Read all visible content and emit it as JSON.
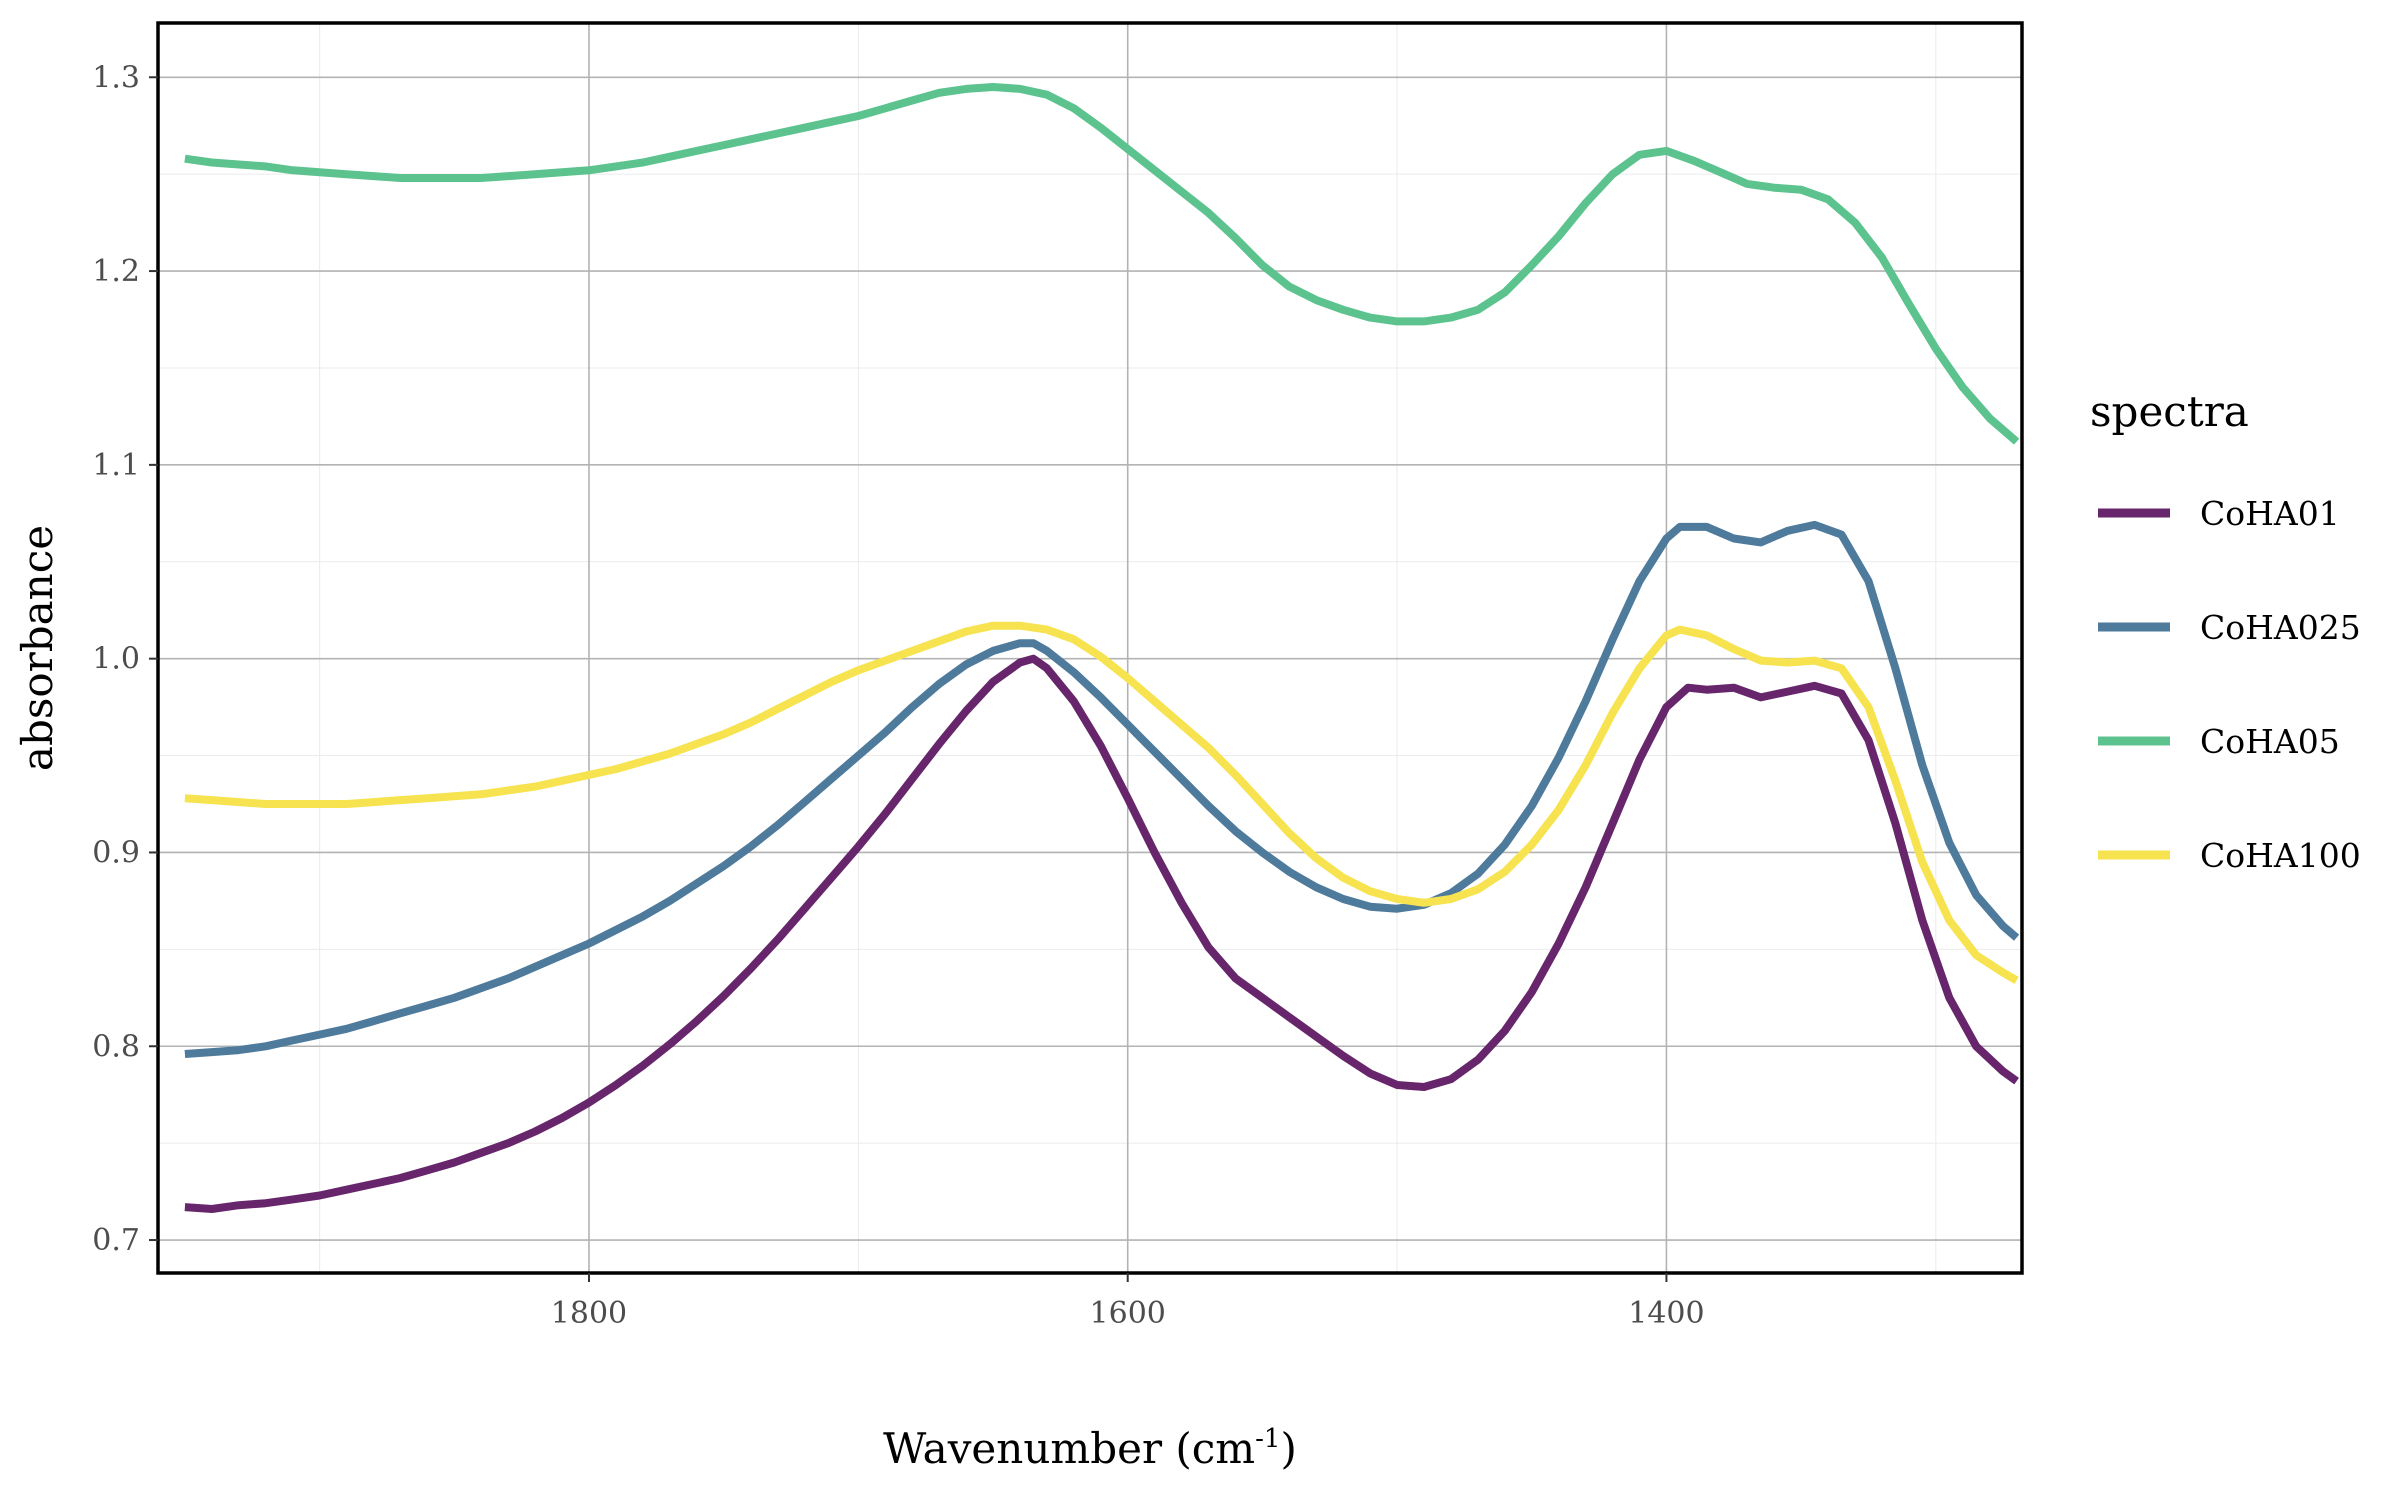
{
  "chart_data": {
    "type": "line",
    "xlabel": "Wavenumber (cm",
    "xlabel_sup": "-1",
    "xlabel_suffix": ")",
    "ylabel": "absorbance",
    "x_reversed": true,
    "xlim": [
      1960,
      1268
    ],
    "ylim": [
      0.683,
      1.328
    ],
    "xticks": [
      1800,
      1600,
      1400
    ],
    "xtick_labels": [
      "1800",
      "1600",
      "1400"
    ],
    "yticks": [
      0.7,
      0.8,
      0.9,
      1.0,
      1.1,
      1.2,
      1.3
    ],
    "ytick_labels": [
      "0.7",
      "0.8",
      "0.9",
      "1.0",
      "1.1",
      "1.2",
      "1.3"
    ],
    "grid": true,
    "legend": {
      "title": "spectra",
      "placement": "right"
    },
    "series": [
      {
        "name": "CoHA01",
        "color": "#67266b",
        "points": [
          [
            1950,
            0.717
          ],
          [
            1940,
            0.716
          ],
          [
            1930,
            0.718
          ],
          [
            1920,
            0.719
          ],
          [
            1910,
            0.721
          ],
          [
            1900,
            0.723
          ],
          [
            1890,
            0.726
          ],
          [
            1880,
            0.729
          ],
          [
            1870,
            0.732
          ],
          [
            1860,
            0.736
          ],
          [
            1850,
            0.74
          ],
          [
            1840,
            0.745
          ],
          [
            1830,
            0.75
          ],
          [
            1820,
            0.756
          ],
          [
            1810,
            0.763
          ],
          [
            1800,
            0.771
          ],
          [
            1790,
            0.78
          ],
          [
            1780,
            0.79
          ],
          [
            1770,
            0.801
          ],
          [
            1760,
            0.813
          ],
          [
            1750,
            0.826
          ],
          [
            1740,
            0.84
          ],
          [
            1730,
            0.855
          ],
          [
            1720,
            0.871
          ],
          [
            1710,
            0.887
          ],
          [
            1700,
            0.903
          ],
          [
            1690,
            0.92
          ],
          [
            1680,
            0.938
          ],
          [
            1670,
            0.956
          ],
          [
            1660,
            0.973
          ],
          [
            1650,
            0.988
          ],
          [
            1640,
            0.998
          ],
          [
            1635,
            1.0
          ],
          [
            1630,
            0.995
          ],
          [
            1620,
            0.978
          ],
          [
            1610,
            0.955
          ],
          [
            1600,
            0.928
          ],
          [
            1590,
            0.9
          ],
          [
            1580,
            0.874
          ],
          [
            1570,
            0.851
          ],
          [
            1560,
            0.835
          ],
          [
            1550,
            0.825
          ],
          [
            1540,
            0.815
          ],
          [
            1530,
            0.805
          ],
          [
            1520,
            0.795
          ],
          [
            1510,
            0.786
          ],
          [
            1500,
            0.78
          ],
          [
            1490,
            0.779
          ],
          [
            1480,
            0.783
          ],
          [
            1470,
            0.793
          ],
          [
            1460,
            0.808
          ],
          [
            1450,
            0.828
          ],
          [
            1440,
            0.853
          ],
          [
            1430,
            0.882
          ],
          [
            1420,
            0.915
          ],
          [
            1410,
            0.948
          ],
          [
            1400,
            0.975
          ],
          [
            1392,
            0.985
          ],
          [
            1385,
            0.984
          ],
          [
            1375,
            0.985
          ],
          [
            1365,
            0.98
          ],
          [
            1355,
            0.983
          ],
          [
            1345,
            0.986
          ],
          [
            1335,
            0.982
          ],
          [
            1325,
            0.958
          ],
          [
            1315,
            0.915
          ],
          [
            1305,
            0.865
          ],
          [
            1295,
            0.825
          ],
          [
            1285,
            0.8
          ],
          [
            1275,
            0.787
          ],
          [
            1270,
            0.782
          ]
        ]
      },
      {
        "name": "CoHA025",
        "color": "#4e7a9c",
        "points": [
          [
            1950,
            0.796
          ],
          [
            1940,
            0.797
          ],
          [
            1930,
            0.798
          ],
          [
            1920,
            0.8
          ],
          [
            1910,
            0.803
          ],
          [
            1900,
            0.806
          ],
          [
            1890,
            0.809
          ],
          [
            1880,
            0.813
          ],
          [
            1870,
            0.817
          ],
          [
            1860,
            0.821
          ],
          [
            1850,
            0.825
          ],
          [
            1840,
            0.83
          ],
          [
            1830,
            0.835
          ],
          [
            1820,
            0.841
          ],
          [
            1810,
            0.847
          ],
          [
            1800,
            0.853
          ],
          [
            1790,
            0.86
          ],
          [
            1780,
            0.867
          ],
          [
            1770,
            0.875
          ],
          [
            1760,
            0.884
          ],
          [
            1750,
            0.893
          ],
          [
            1740,
            0.903
          ],
          [
            1730,
            0.914
          ],
          [
            1720,
            0.926
          ],
          [
            1710,
            0.938
          ],
          [
            1700,
            0.95
          ],
          [
            1690,
            0.962
          ],
          [
            1680,
            0.975
          ],
          [
            1670,
            0.987
          ],
          [
            1660,
            0.997
          ],
          [
            1650,
            1.004
          ],
          [
            1640,
            1.008
          ],
          [
            1635,
            1.008
          ],
          [
            1630,
            1.004
          ],
          [
            1620,
            0.993
          ],
          [
            1610,
            0.98
          ],
          [
            1600,
            0.966
          ],
          [
            1590,
            0.952
          ],
          [
            1580,
            0.938
          ],
          [
            1570,
            0.924
          ],
          [
            1560,
            0.911
          ],
          [
            1550,
            0.9
          ],
          [
            1540,
            0.89
          ],
          [
            1530,
            0.882
          ],
          [
            1520,
            0.876
          ],
          [
            1510,
            0.872
          ],
          [
            1500,
            0.871
          ],
          [
            1490,
            0.873
          ],
          [
            1480,
            0.879
          ],
          [
            1470,
            0.889
          ],
          [
            1460,
            0.904
          ],
          [
            1450,
            0.924
          ],
          [
            1440,
            0.949
          ],
          [
            1430,
            0.978
          ],
          [
            1420,
            1.01
          ],
          [
            1410,
            1.04
          ],
          [
            1400,
            1.062
          ],
          [
            1395,
            1.068
          ],
          [
            1385,
            1.068
          ],
          [
            1375,
            1.062
          ],
          [
            1365,
            1.06
          ],
          [
            1355,
            1.066
          ],
          [
            1345,
            1.069
          ],
          [
            1335,
            1.064
          ],
          [
            1325,
            1.04
          ],
          [
            1315,
            0.995
          ],
          [
            1305,
            0.945
          ],
          [
            1295,
            0.905
          ],
          [
            1285,
            0.878
          ],
          [
            1275,
            0.862
          ],
          [
            1270,
            0.856
          ]
        ]
      },
      {
        "name": "CoHA05",
        "color": "#5cc38f",
        "points": [
          [
            1950,
            1.258
          ],
          [
            1940,
            1.256
          ],
          [
            1930,
            1.255
          ],
          [
            1920,
            1.254
          ],
          [
            1910,
            1.252
          ],
          [
            1900,
            1.251
          ],
          [
            1890,
            1.25
          ],
          [
            1880,
            1.249
          ],
          [
            1870,
            1.248
          ],
          [
            1860,
            1.248
          ],
          [
            1850,
            1.248
          ],
          [
            1840,
            1.248
          ],
          [
            1830,
            1.249
          ],
          [
            1820,
            1.25
          ],
          [
            1810,
            1.251
          ],
          [
            1800,
            1.252
          ],
          [
            1790,
            1.254
          ],
          [
            1780,
            1.256
          ],
          [
            1770,
            1.259
          ],
          [
            1760,
            1.262
          ],
          [
            1750,
            1.265
          ],
          [
            1740,
            1.268
          ],
          [
            1730,
            1.271
          ],
          [
            1720,
            1.274
          ],
          [
            1710,
            1.277
          ],
          [
            1700,
            1.28
          ],
          [
            1690,
            1.284
          ],
          [
            1680,
            1.288
          ],
          [
            1670,
            1.292
          ],
          [
            1660,
            1.294
          ],
          [
            1650,
            1.295
          ],
          [
            1640,
            1.294
          ],
          [
            1630,
            1.291
          ],
          [
            1620,
            1.284
          ],
          [
            1610,
            1.274
          ],
          [
            1600,
            1.263
          ],
          [
            1590,
            1.252
          ],
          [
            1580,
            1.241
          ],
          [
            1570,
            1.23
          ],
          [
            1560,
            1.217
          ],
          [
            1550,
            1.203
          ],
          [
            1540,
            1.192
          ],
          [
            1530,
            1.185
          ],
          [
            1520,
            1.18
          ],
          [
            1510,
            1.176
          ],
          [
            1500,
            1.174
          ],
          [
            1490,
            1.174
          ],
          [
            1480,
            1.176
          ],
          [
            1470,
            1.18
          ],
          [
            1460,
            1.189
          ],
          [
            1450,
            1.203
          ],
          [
            1440,
            1.218
          ],
          [
            1430,
            1.235
          ],
          [
            1420,
            1.25
          ],
          [
            1410,
            1.26
          ],
          [
            1400,
            1.262
          ],
          [
            1390,
            1.257
          ],
          [
            1380,
            1.251
          ],
          [
            1370,
            1.245
          ],
          [
            1360,
            1.243
          ],
          [
            1350,
            1.242
          ],
          [
            1340,
            1.237
          ],
          [
            1330,
            1.225
          ],
          [
            1320,
            1.207
          ],
          [
            1310,
            1.183
          ],
          [
            1300,
            1.16
          ],
          [
            1290,
            1.14
          ],
          [
            1280,
            1.124
          ],
          [
            1270,
            1.112
          ]
        ]
      },
      {
        "name": "CoHA100",
        "color": "#f6e34f",
        "points": [
          [
            1950,
            0.928
          ],
          [
            1940,
            0.927
          ],
          [
            1930,
            0.926
          ],
          [
            1920,
            0.925
          ],
          [
            1910,
            0.925
          ],
          [
            1900,
            0.925
          ],
          [
            1890,
            0.925
          ],
          [
            1880,
            0.926
          ],
          [
            1870,
            0.927
          ],
          [
            1860,
            0.928
          ],
          [
            1850,
            0.929
          ],
          [
            1840,
            0.93
          ],
          [
            1830,
            0.932
          ],
          [
            1820,
            0.934
          ],
          [
            1810,
            0.937
          ],
          [
            1800,
            0.94
          ],
          [
            1790,
            0.943
          ],
          [
            1780,
            0.947
          ],
          [
            1770,
            0.951
          ],
          [
            1760,
            0.956
          ],
          [
            1750,
            0.961
          ],
          [
            1740,
            0.967
          ],
          [
            1730,
            0.974
          ],
          [
            1720,
            0.981
          ],
          [
            1710,
            0.988
          ],
          [
            1700,
            0.994
          ],
          [
            1690,
            0.999
          ],
          [
            1680,
            1.004
          ],
          [
            1670,
            1.009
          ],
          [
            1660,
            1.014
          ],
          [
            1650,
            1.017
          ],
          [
            1640,
            1.017
          ],
          [
            1630,
            1.015
          ],
          [
            1620,
            1.01
          ],
          [
            1610,
            1.001
          ],
          [
            1600,
            0.99
          ],
          [
            1590,
            0.978
          ],
          [
            1580,
            0.966
          ],
          [
            1570,
            0.954
          ],
          [
            1560,
            0.94
          ],
          [
            1550,
            0.925
          ],
          [
            1540,
            0.91
          ],
          [
            1530,
            0.897
          ],
          [
            1520,
            0.887
          ],
          [
            1510,
            0.88
          ],
          [
            1500,
            0.876
          ],
          [
            1490,
            0.874
          ],
          [
            1480,
            0.876
          ],
          [
            1470,
            0.881
          ],
          [
            1460,
            0.89
          ],
          [
            1450,
            0.904
          ],
          [
            1440,
            0.922
          ],
          [
            1430,
            0.945
          ],
          [
            1420,
            0.972
          ],
          [
            1410,
            0.995
          ],
          [
            1400,
            1.012
          ],
          [
            1395,
            1.015
          ],
          [
            1385,
            1.012
          ],
          [
            1375,
            1.005
          ],
          [
            1365,
            0.999
          ],
          [
            1355,
            0.998
          ],
          [
            1345,
            0.999
          ],
          [
            1335,
            0.995
          ],
          [
            1325,
            0.975
          ],
          [
            1315,
            0.937
          ],
          [
            1305,
            0.895
          ],
          [
            1295,
            0.865
          ],
          [
            1285,
            0.847
          ],
          [
            1275,
            0.838
          ],
          [
            1270,
            0.834
          ]
        ]
      }
    ]
  }
}
